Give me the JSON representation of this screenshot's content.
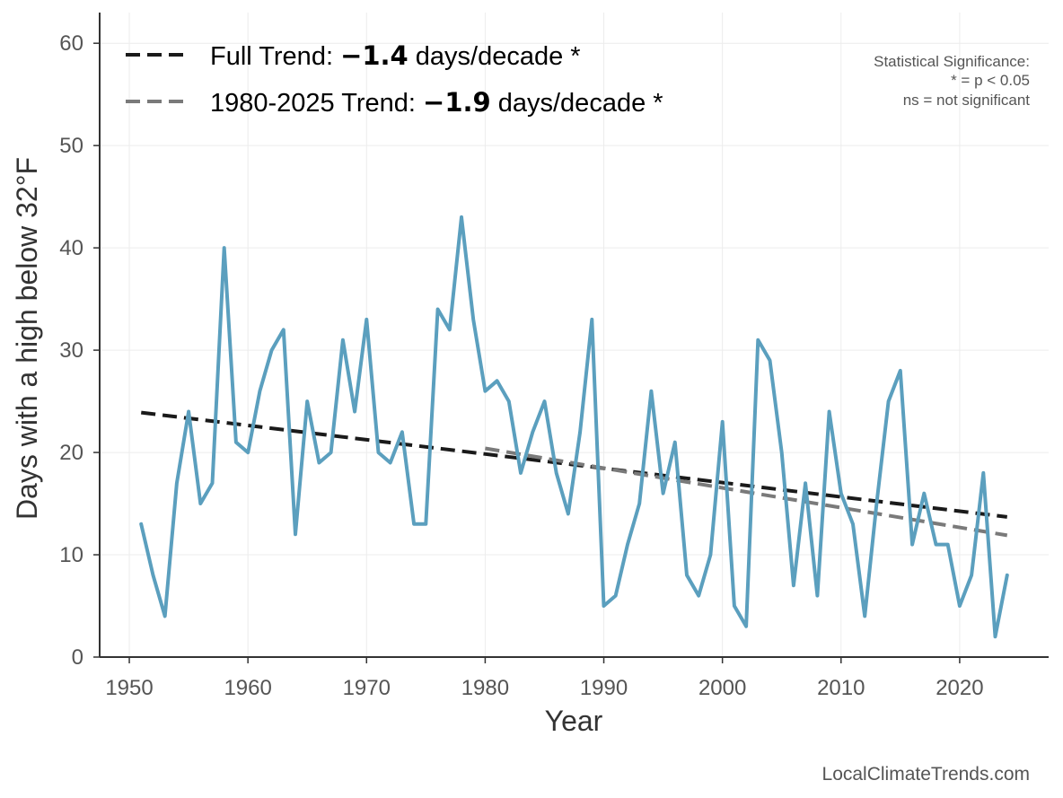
{
  "chart_data": {
    "type": "line",
    "xlabel": "Year",
    "ylabel": "Days with a high below 32°F",
    "xlim": [
      1947.5,
      2027.5
    ],
    "ylim": [
      0,
      63
    ],
    "xticks": [
      1950,
      1960,
      1970,
      1980,
      1990,
      2000,
      2010,
      2020
    ],
    "yticks": [
      0,
      10,
      20,
      30,
      40,
      50,
      60
    ],
    "grid": true,
    "legend_placement": "top-left",
    "series": [
      {
        "color": "#5b9fbe",
        "x": [
          1951,
          1952,
          1953,
          1954,
          1955,
          1956,
          1957,
          1958,
          1959,
          1960,
          1961,
          1962,
          1963,
          1964,
          1965,
          1966,
          1967,
          1968,
          1969,
          1970,
          1971,
          1972,
          1973,
          1974,
          1975,
          1976,
          1977,
          1978,
          1979,
          1980,
          1981,
          1982,
          1983,
          1984,
          1985,
          1986,
          1987,
          1988,
          1989,
          1990,
          1991,
          1992,
          1993,
          1994,
          1995,
          1996,
          1997,
          1998,
          1999,
          2000,
          2001,
          2002,
          2003,
          2004,
          2005,
          2006,
          2007,
          2008,
          2009,
          2010,
          2011,
          2012,
          2013,
          2014,
          2015,
          2016,
          2017,
          2018,
          2019,
          2020,
          2021,
          2022,
          2023,
          2024
        ],
        "y": [
          13,
          8,
          4,
          17,
          24,
          15,
          17,
          40,
          21,
          20,
          26,
          30,
          32,
          12,
          25,
          19,
          20,
          31,
          24,
          33,
          20,
          19,
          22,
          13,
          13,
          34,
          32,
          43,
          33,
          26,
          27,
          25,
          18,
          22,
          25,
          18,
          14,
          22,
          33,
          5,
          6,
          11,
          15,
          26,
          16,
          21,
          8,
          6,
          10,
          23,
          5,
          3,
          31,
          29,
          20,
          7,
          17,
          6,
          24,
          16,
          13,
          4,
          15,
          25,
          28,
          11,
          16,
          11,
          11,
          5,
          8,
          18,
          2,
          8
        ]
      }
    ],
    "trend_lines": [
      {
        "label": "Full Trend: ",
        "value": "−1.4",
        "unit": " days/decade *",
        "color": "#1a1a1a",
        "x": [
          1951,
          2024
        ],
        "y": [
          23.9,
          13.7
        ]
      },
      {
        "label": "1980-2025 Trend: ",
        "value": "−1.9",
        "unit": " days/decade *",
        "color": "#7a7a7a",
        "x": [
          1980,
          2024
        ],
        "y": [
          20.4,
          11.9
        ]
      }
    ],
    "annotation": {
      "lines": [
        "Statistical Significance:",
        "* = p < 0.05",
        "ns = not significant"
      ]
    },
    "credit": "LocalClimateTrends.com"
  }
}
